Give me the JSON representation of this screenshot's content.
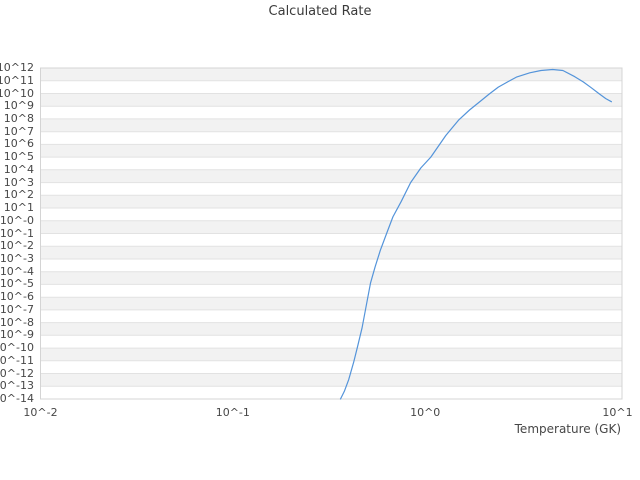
{
  "chart_data": {
    "type": "line",
    "title": "Calculated Rate",
    "xlabel": "Temperature (GK)",
    "ylabel": "",
    "x_scale": "log",
    "y_scale": "log",
    "grid": "horizontal",
    "background_bands": true,
    "legend": "none",
    "x_ticks": [
      "10^-2",
      "10^-1",
      "10^0",
      "10^1"
    ],
    "x_tick_log10": [
      -2,
      -1,
      0,
      1
    ],
    "y_ticks": [
      "10^12",
      "10^11",
      "10^10",
      "10^9",
      "10^8",
      "10^7",
      "10^6",
      "10^5",
      "10^4",
      "10^3",
      "10^2",
      "10^1",
      "10^-0",
      "10^-1",
      "10^-2",
      "10^-3",
      "10^-4",
      "10^-5",
      "10^-6",
      "10^-7",
      "10^-8",
      "10^-9",
      "10^-10",
      "10^-11",
      "10^-12",
      "10^-13",
      "10^-14"
    ],
    "y_tick_log10": [
      12,
      11,
      10,
      9,
      8,
      7,
      6,
      5,
      4,
      3,
      2,
      1,
      0,
      -1,
      -2,
      -3,
      -4,
      -5,
      -6,
      -7,
      -8,
      -9,
      -10,
      -11,
      -12,
      -13,
      -14
    ],
    "xlim_log10": [
      -2,
      1.0235
    ],
    "ylim_log10": [
      -14,
      12
    ],
    "series": [
      {
        "name": "rate",
        "color": "#5494da",
        "x": [
          0.363,
          0.38,
          0.4,
          0.425,
          0.445,
          0.47,
          0.495,
          0.52,
          0.55,
          0.585,
          0.63,
          0.68,
          0.75,
          0.84,
          0.95,
          1.07,
          1.28,
          1.49,
          1.7,
          1.94,
          2.15,
          2.4,
          2.7,
          3.0,
          3.5,
          4.0,
          4.6,
          5.2,
          6.0,
          6.65,
          7.3,
          8.0,
          8.7,
          9.3
        ],
        "log10_y": [
          -14.0,
          -13.4,
          -12.5,
          -11.1,
          -9.9,
          -8.4,
          -6.6,
          -4.9,
          -3.6,
          -2.3,
          -1.0,
          0.3,
          1.5,
          3.0,
          4.15,
          5.0,
          6.7,
          7.9,
          8.7,
          9.4,
          9.95,
          10.5,
          10.93,
          11.3,
          11.62,
          11.8,
          11.88,
          11.8,
          11.32,
          10.9,
          10.45,
          10.0,
          9.6,
          9.35
        ]
      }
    ]
  },
  "colors": {
    "background": "#ffffff",
    "band": "#f2f2f2",
    "grid": "#e2e2e2",
    "border": "#d4d4d4",
    "title_text": "#3b3b3b",
    "tick_text": "#474747",
    "line": "#5494da"
  }
}
